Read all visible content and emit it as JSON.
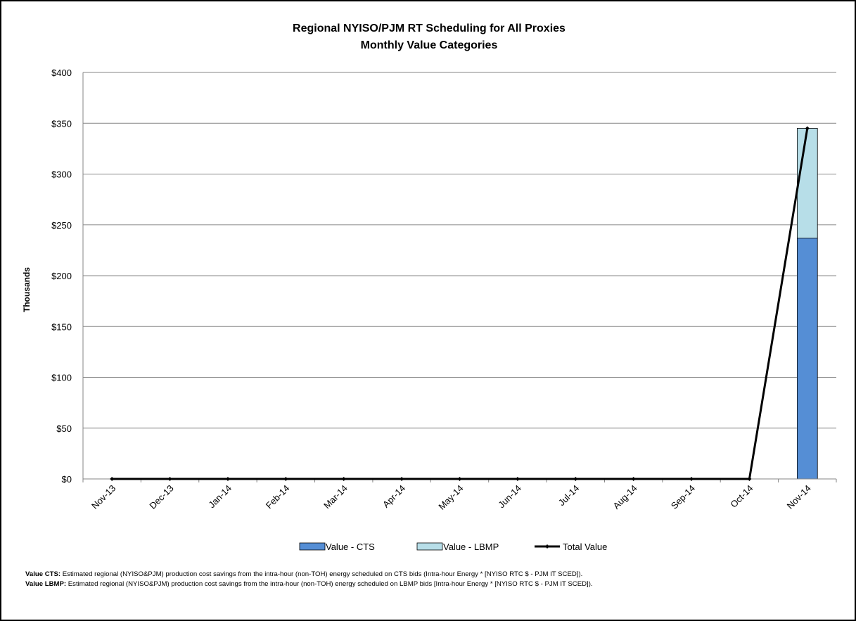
{
  "chart_data": {
    "type": "bar",
    "stacked": true,
    "title": "Regional NYISO/PJM RT Scheduling for All Proxies",
    "subtitle": "Monthly Value Categories",
    "ylabel": "Thousands",
    "xlabel": "",
    "ylim": [
      0,
      400
    ],
    "ytick_step": 50,
    "ytick_prefix": "$",
    "grid": true,
    "legend_position": "bottom",
    "categories": [
      "Nov-13",
      "Dec-13",
      "Jan-14",
      "Feb-14",
      "Mar-14",
      "Apr-14",
      "May-14",
      "Jun-14",
      "Jul-14",
      "Aug-14",
      "Sep-14",
      "Oct-14",
      "Nov-14"
    ],
    "series": [
      {
        "name": "Value - CTS",
        "kind": "bar",
        "color": "#558ED5",
        "values": [
          0,
          0,
          0,
          0,
          0,
          0,
          0,
          0,
          0,
          0,
          0,
          0,
          237
        ]
      },
      {
        "name": "Value - LBMP",
        "kind": "bar",
        "color": "#B7DEE8",
        "values": [
          0,
          0,
          0,
          0,
          0,
          0,
          0,
          0,
          0,
          0,
          0,
          0,
          108
        ]
      },
      {
        "name": "Total Value",
        "kind": "line",
        "color": "#000000",
        "values": [
          0,
          0,
          0,
          0,
          0,
          0,
          0,
          0,
          0,
          0,
          0,
          0,
          345
        ]
      }
    ]
  },
  "notes": [
    {
      "label": "Value CTS:",
      "text": "Estimated regional (NYISO&PJM) production cost savings from the intra-hour (non-TOH) energy scheduled on CTS bids (Intra-hour Energy * [NYISO RTC $ - PJM IT SCED])."
    },
    {
      "label": "Value LBMP:",
      "text": "Estimated regional (NYISO&PJM) production cost savings from the intra-hour (non-TOH) energy scheduled on LBMP bids [Intra-hour Energy * [NYISO RTC $ - PJM IT SCED])."
    }
  ]
}
